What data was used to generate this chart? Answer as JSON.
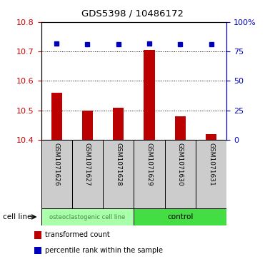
{
  "title": "GDS5398 / 10486172",
  "samples": [
    "GSM1071626",
    "GSM1071627",
    "GSM1071628",
    "GSM1071629",
    "GSM1071630",
    "GSM1071631"
  ],
  "bar_values": [
    10.56,
    10.5,
    10.51,
    10.705,
    10.48,
    10.42
  ],
  "percentile_values": [
    82,
    81,
    81,
    82,
    81,
    81
  ],
  "ylim_left": [
    10.4,
    10.8
  ],
  "ylim_right": [
    0,
    100
  ],
  "yticks_left": [
    10.4,
    10.5,
    10.6,
    10.7,
    10.8
  ],
  "yticks_right": [
    0,
    25,
    50,
    75,
    100
  ],
  "bar_color": "#bb0000",
  "dot_color": "#0000bb",
  "bar_bottom": 10.4,
  "group0_label": "osteoclastogenic cell line",
  "group1_label": "control",
  "group0_color": "#aaffaa",
  "group1_color": "#44dd44",
  "group0_text_color": "#448844",
  "group1_text_color": "#000000",
  "cell_line_label": "cell line",
  "legend_bar_label": "transformed count",
  "legend_dot_label": "percentile rank within the sample",
  "left_tick_color": "#cc0000",
  "right_tick_color": "#0000cc",
  "grid_color": "#000000",
  "label_bg_color": "#cccccc",
  "bar_width": 0.35
}
